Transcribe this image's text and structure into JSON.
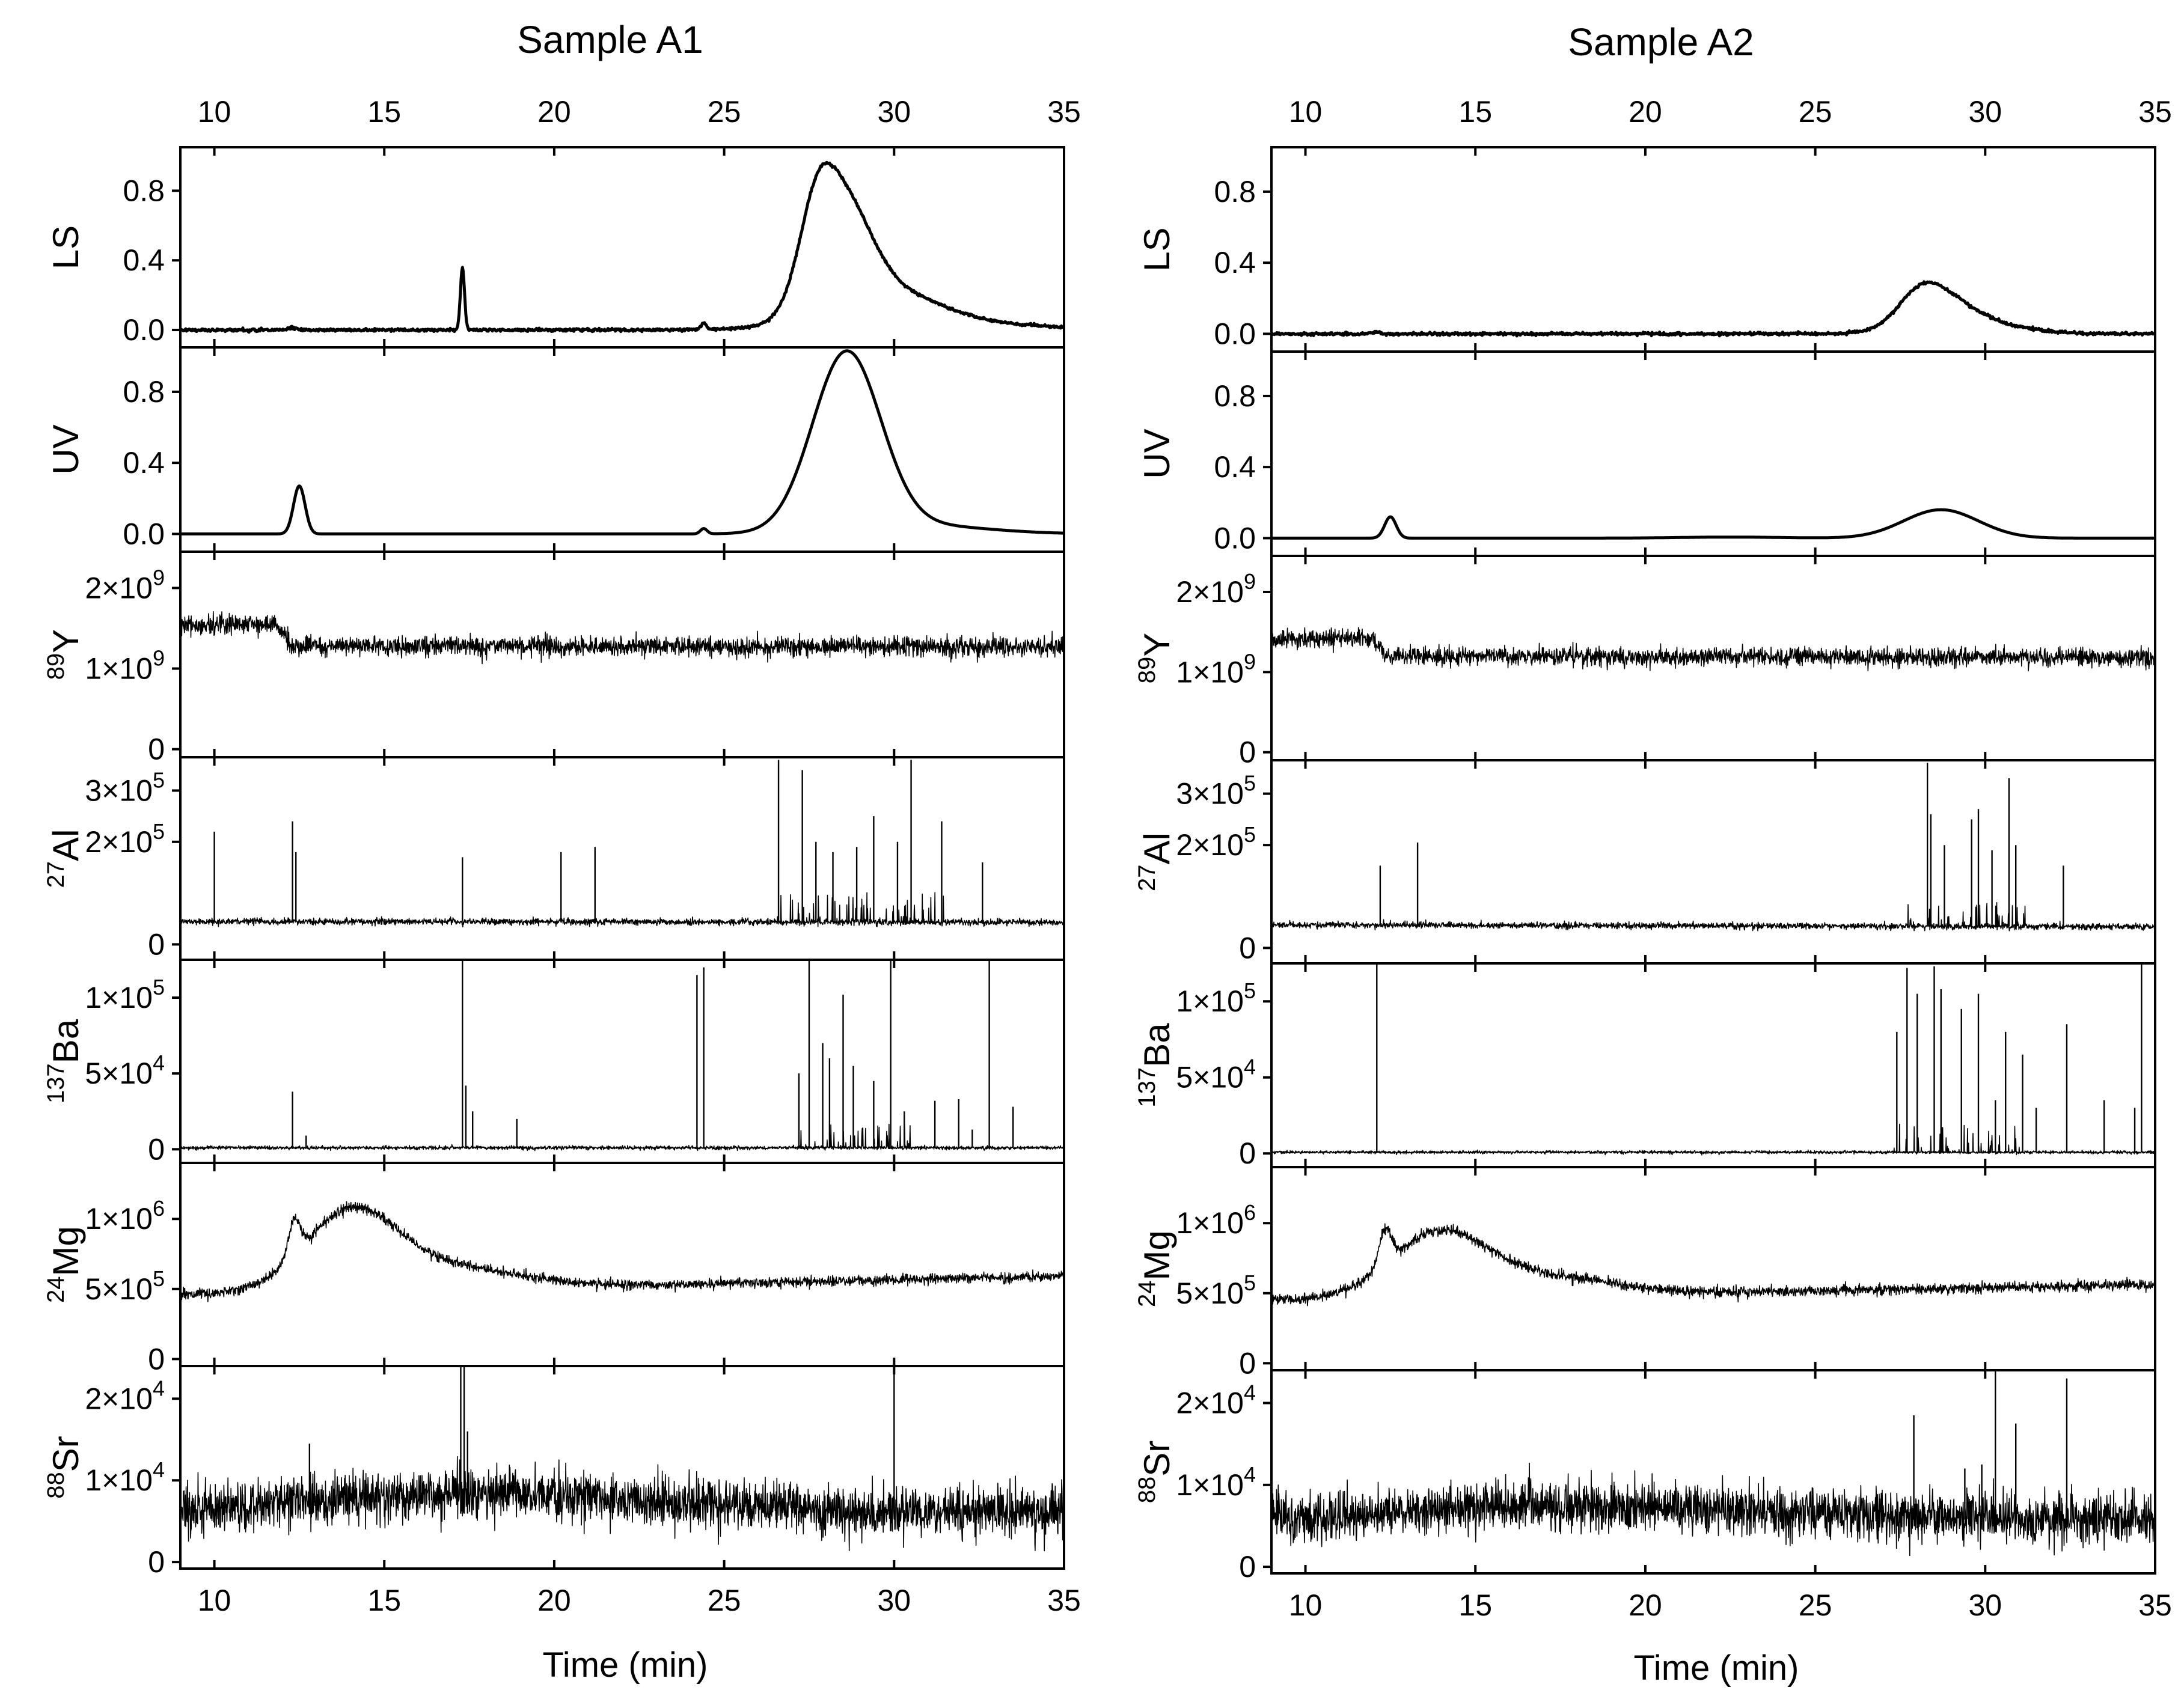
{
  "figure": {
    "panels": [
      {
        "id": "A1",
        "title": "Sample A1"
      },
      {
        "id": "A2",
        "title": "Sample A2"
      }
    ],
    "x_axis_title": "Time (min)"
  },
  "chart_data": {
    "type": "line",
    "x_axis": {
      "label": "Time (min)",
      "xlim": [
        9,
        35
      ],
      "ticks": [
        10,
        15,
        20,
        25,
        30,
        35
      ]
    },
    "detectors": [
      {
        "id": "LS",
        "label": "LS",
        "ylim": [
          -0.1,
          1.05
        ],
        "ticks": [
          0.0,
          0.4,
          0.8
        ],
        "tick_labels": [
          "0.0",
          "0.4",
          "0.8"
        ]
      },
      {
        "id": "UV",
        "label": "UV",
        "ylim": [
          -0.1,
          1.05
        ],
        "ticks": [
          0.0,
          0.4,
          0.8
        ],
        "tick_labels": [
          "0.0",
          "0.4",
          "0.8"
        ]
      },
      {
        "id": "Y89",
        "isotope": "89",
        "element": "Y",
        "ylim": [
          -100000000.0,
          2450000000.0
        ],
        "ticks": [
          0,
          1000000000.0,
          2000000000.0
        ],
        "tick_labels": [
          [
            "0",
            ""
          ],
          [
            "1×10",
            "9"
          ],
          [
            "2×10",
            "9"
          ]
        ]
      },
      {
        "id": "Al27",
        "isotope": "27",
        "element": "Al",
        "ylim": [
          -30000.0,
          365000.0
        ],
        "ticks": [
          0,
          200000.0,
          300000.0
        ],
        "tick_labels": [
          [
            "0",
            ""
          ],
          [
            "2×10",
            "5"
          ],
          [
            "3×10",
            "5"
          ]
        ]
      },
      {
        "id": "Ba137",
        "isotope": "137",
        "element": "Ba",
        "ylim": [
          -9000.0,
          125000.0
        ],
        "ticks": [
          0,
          50000.0,
          100000.0
        ],
        "tick_labels": [
          [
            "0",
            ""
          ],
          [
            "5×10",
            "4"
          ],
          [
            "1×10",
            "5"
          ]
        ]
      },
      {
        "id": "Mg24",
        "isotope": "24",
        "element": "Mg",
        "ylim": [
          -50000.0,
          1400000.0
        ],
        "ticks": [
          0,
          500000.0,
          1000000.0
        ],
        "tick_labels": [
          [
            "0",
            ""
          ],
          [
            "5×10",
            "5"
          ],
          [
            "1×10",
            "6"
          ]
        ]
      },
      {
        "id": "Sr88",
        "isotope": "88",
        "element": "Sr",
        "ylim": [
          -800.0,
          24000.0
        ],
        "ticks": [
          0,
          10000.0,
          20000.0
        ],
        "tick_labels": [
          [
            "0",
            ""
          ],
          [
            "1×10",
            "4"
          ],
          [
            "2×10",
            "4"
          ]
        ]
      }
    ],
    "samples": {
      "A1": {
        "LS": {
          "baseline": 0.0,
          "gaussians": [
            [
              12.3,
              0.015,
              0.12
            ],
            [
              17.3,
              0.36,
              0.06
            ],
            [
              24.4,
              0.035,
              0.08
            ],
            [
              27.7,
              0.35,
              0.5
            ],
            [
              28.4,
              0.62,
              0.85
            ],
            [
              29.8,
              0.18,
              1.5
            ]
          ],
          "tail": [
            [
              31.0,
              0.04,
              3.0
            ]
          ],
          "noise": 0.004
        },
        "UV": {
          "baseline": 0.0,
          "gaussians": [
            [
              12.5,
              0.27,
              0.17
            ],
            [
              24.4,
              0.03,
              0.1
            ],
            [
              28.6,
              1.0,
              1.0
            ]
          ],
          "tail": [
            [
              30.6,
              0.05,
              2.0
            ]
          ],
          "noise": 0.0
        },
        "Y89": {
          "baseline_steps": [
            [
              9,
              1550000000.0
            ],
            [
              11.8,
              1550000000.0
            ],
            [
              12.3,
              1280000000.0
            ],
            [
              35,
              1270000000.0
            ]
          ],
          "noise": 60000000.0,
          "spikes": []
        },
        "Al27": {
          "baseline_steps": [
            [
              9,
              45000.0
            ],
            [
              35,
              43000.0
            ]
          ],
          "noise": 3000.0,
          "burst": [
            26.5,
            31.5,
            55000.0
          ],
          "spikes": [
            [
              10.0,
              220000.0
            ],
            [
              12.3,
              240000.0
            ],
            [
              12.4,
              180000.0
            ],
            [
              17.3,
              170000.0
            ],
            [
              20.2,
              180000.0
            ],
            [
              21.2,
              190000.0
            ],
            [
              26.6,
              360000.0
            ],
            [
              27.3,
              340000.0
            ],
            [
              27.7,
              200000.0
            ],
            [
              28.2,
              180000.0
            ],
            [
              28.9,
              190000.0
            ],
            [
              29.4,
              250000.0
            ],
            [
              30.1,
              200000.0
            ],
            [
              30.5,
              360000.0
            ],
            [
              31.4,
              240000.0
            ],
            [
              32.6,
              160000.0
            ]
          ]
        },
        "Ba137": {
          "baseline_steps": [
            [
              9,
              1000.0
            ],
            [
              35,
              1000.0
            ]
          ],
          "noise": 600.0,
          "burst": [
            27.0,
            30.5,
            16000.0
          ],
          "spikes": [
            [
              12.3,
              38000.0
            ],
            [
              12.7,
              9000.0
            ],
            [
              17.3,
              125000.0
            ],
            [
              17.4,
              42000.0
            ],
            [
              17.6,
              25000.0
            ],
            [
              18.9,
              20000.0
            ],
            [
              24.2,
              115000.0
            ],
            [
              24.4,
              120000.0
            ],
            [
              27.2,
              50000.0
            ],
            [
              27.5,
              125000.0
            ],
            [
              27.9,
              70000.0
            ],
            [
              28.1,
              60000.0
            ],
            [
              28.5,
              102000.0
            ],
            [
              28.8,
              55000.0
            ],
            [
              29.4,
              45000.0
            ],
            [
              29.9,
              125000.0
            ],
            [
              30.3,
              25000.0
            ],
            [
              31.2,
              32000.0
            ],
            [
              31.9,
              33000.0
            ],
            [
              32.3,
              13000.0
            ],
            [
              32.8,
              125000.0
            ],
            [
              33.5,
              28000.0
            ]
          ]
        },
        "Mg24": {
          "baseline_steps": [
            [
              9,
              460000.0
            ],
            [
              35,
              590000.0
            ]
          ],
          "gaussians": [
            [
              12.35,
              250000.0,
              0.18
            ],
            [
              14.0,
              550000.0,
              1.35
            ],
            [
              17.0,
              150000.0,
              2.0
            ]
          ],
          "noise": 18000.0,
          "spikes": []
        },
        "Sr88": {
          "baseline_steps": [
            [
              9,
              5800.0
            ],
            [
              35,
              6200.0
            ]
          ],
          "gaussians": [
            [
              17.5,
              2300.0,
              5.5
            ]
          ],
          "noise": 1500.0,
          "spikes": [
            [
              12.8,
              14500.0
            ],
            [
              17.25,
              24000.0
            ],
            [
              17.35,
              24000.0
            ],
            [
              17.45,
              16000.0
            ],
            [
              30.0,
              24000.0
            ]
          ]
        }
      },
      "A2": {
        "LS": {
          "baseline": 0.0,
          "gaussians": [
            [
              12.1,
              0.012,
              0.1
            ],
            [
              28.0,
              0.1,
              0.6
            ],
            [
              28.6,
              0.17,
              0.9
            ],
            [
              29.6,
              0.06,
              1.4
            ]
          ],
          "tail": [],
          "noise": 0.004
        },
        "UV": {
          "baseline": 0.0,
          "gaussians": [
            [
              12.5,
              0.12,
              0.17
            ],
            [
              28.7,
              0.16,
              1.1
            ],
            [
              22.5,
              0.006,
              1.5
            ]
          ],
          "tail": [],
          "noise": 0.0
        },
        "Y89": {
          "baseline_steps": [
            [
              9,
              1420000000.0
            ],
            [
              12.0,
              1420000000.0
            ],
            [
              12.4,
              1200000000.0
            ],
            [
              35,
              1180000000.0
            ]
          ],
          "noise": 55000000.0,
          "spikes": []
        },
        "Al27": {
          "baseline_steps": [
            [
              9,
              45000.0
            ],
            [
              35,
              41000.0
            ]
          ],
          "noise": 3000.0,
          "burst": [
            27.0,
            31.5,
            45000.0
          ],
          "spikes": [
            [
              12.2,
              160000.0
            ],
            [
              13.3,
              205000.0
            ],
            [
              28.3,
              360000.0
            ],
            [
              28.4,
              260000.0
            ],
            [
              28.8,
              200000.0
            ],
            [
              29.6,
              250000.0
            ],
            [
              29.8,
              270000.0
            ],
            [
              30.2,
              190000.0
            ],
            [
              30.7,
              330000.0
            ],
            [
              30.9,
              200000.0
            ],
            [
              32.3,
              160000.0
            ]
          ]
        },
        "Ba137": {
          "baseline_steps": [
            [
              9,
              800.0
            ],
            [
              35,
              800.0
            ]
          ],
          "noise": 500.0,
          "burst": [
            27.3,
            31.0,
            18000.0
          ],
          "spikes": [
            [
              12.1,
              125000.0
            ],
            [
              27.4,
              80000.0
            ],
            [
              27.7,
              122000.0
            ],
            [
              28.0,
              105000.0
            ],
            [
              28.5,
              123000.0
            ],
            [
              28.7,
              108000.0
            ],
            [
              29.3,
              95000.0
            ],
            [
              29.8,
              105000.0
            ],
            [
              30.3,
              35000.0
            ],
            [
              30.6,
              80000.0
            ],
            [
              31.1,
              65000.0
            ],
            [
              31.5,
              30000.0
            ],
            [
              32.4,
              85000.0
            ],
            [
              33.5,
              35000.0
            ],
            [
              34.4,
              30000.0
            ],
            [
              34.6,
              125000.0
            ]
          ]
        },
        "Mg24": {
          "baseline_steps": [
            [
              9,
              450000.0
            ],
            [
              35,
              560000.0
            ]
          ],
          "gaussians": [
            [
              12.35,
              250000.0,
              0.18
            ],
            [
              13.9,
              440000.0,
              1.4
            ],
            [
              17.0,
              130000.0,
              2.0
            ]
          ],
          "noise": 18000.0,
          "spikes": []
        },
        "Sr88": {
          "baseline_steps": [
            [
              9,
              5600.0
            ],
            [
              35,
              5800.0
            ]
          ],
          "gaussians": [
            [
              18.5,
              1800.0,
              5.5
            ]
          ],
          "noise": 1500.0,
          "spikes": [
            [
              27.9,
              18500.0
            ],
            [
              29.4,
              12000.0
            ],
            [
              29.9,
              12500.0
            ],
            [
              30.3,
              24000.0
            ],
            [
              30.9,
              17500.0
            ],
            [
              32.4,
              23000.0
            ]
          ]
        }
      }
    }
  }
}
